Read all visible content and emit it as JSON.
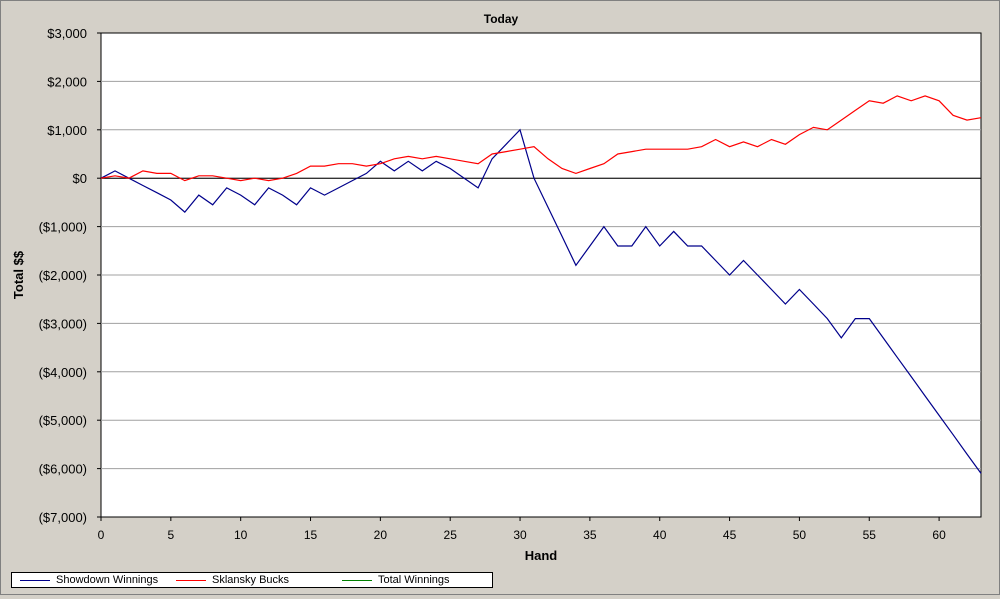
{
  "chart_data": {
    "type": "line",
    "title": "Today",
    "xlabel": "Hand",
    "ylabel": "Total $$",
    "xlim": [
      0,
      63
    ],
    "ylim": [
      -7000,
      3000
    ],
    "x_ticks": [
      0,
      5,
      10,
      15,
      20,
      25,
      30,
      35,
      40,
      45,
      50,
      55,
      60
    ],
    "x_tick_labels": [
      "0",
      "5",
      "10",
      "15",
      "20",
      "25",
      "30",
      "35",
      "40",
      "45",
      "50",
      "55",
      "60"
    ],
    "y_ticks": [
      3000,
      2000,
      1000,
      0,
      -1000,
      -2000,
      -3000,
      -4000,
      -5000,
      -6000,
      -7000
    ],
    "y_tick_labels": [
      "$3,000",
      "$2,000",
      "$1,000",
      "$0",
      "($1,000)",
      "($2,000)",
      "($3,000)",
      "($4,000)",
      "($5,000)",
      "($6,000)",
      "($7,000)"
    ],
    "grid": true,
    "legend_position": "bottom-left",
    "series": [
      {
        "name": "Showdown Winnings",
        "color": "#00008b",
        "x": [
          0,
          1,
          2,
          3,
          4,
          5,
          6,
          7,
          8,
          9,
          10,
          11,
          12,
          13,
          14,
          15,
          16,
          17,
          18,
          19,
          20,
          21,
          22,
          23,
          24,
          25,
          26,
          27,
          28,
          29,
          30,
          31,
          32,
          33,
          34,
          35,
          36,
          37,
          38,
          39,
          40,
          41,
          42,
          43,
          44,
          45,
          46,
          47,
          48,
          49,
          50,
          51,
          52,
          53,
          54,
          55,
          56,
          57,
          58,
          59,
          60,
          61,
          62,
          63
        ],
        "values": [
          0,
          150,
          0,
          -150,
          -300,
          -450,
          -700,
          -350,
          -550,
          -200,
          -350,
          -550,
          -200,
          -350,
          -550,
          -200,
          -350,
          -200,
          -50,
          100,
          350,
          150,
          350,
          150,
          350,
          200,
          0,
          -200,
          400,
          700,
          1000,
          0,
          -600,
          -1200,
          -1800,
          -1400,
          -1000,
          -1400,
          -1400,
          -1000,
          -1400,
          -1100,
          -1400,
          -1400,
          -1700,
          -2000,
          -1700,
          -2000,
          -2300,
          -2600,
          -2300,
          -2600,
          -2900,
          -3300,
          -2900,
          -2900,
          -3300,
          -3700,
          -4100,
          -4500,
          -4900,
          -5300,
          -5700,
          -6100
        ]
      },
      {
        "name": "Sklansky Bucks",
        "color": "#ff0000",
        "x": [
          0,
          1,
          2,
          3,
          4,
          5,
          6,
          7,
          8,
          9,
          10,
          11,
          12,
          13,
          14,
          15,
          16,
          17,
          18,
          19,
          20,
          21,
          22,
          23,
          24,
          25,
          26,
          27,
          28,
          29,
          30,
          31,
          32,
          33,
          34,
          35,
          36,
          37,
          38,
          39,
          40,
          41,
          42,
          43,
          44,
          45,
          46,
          47,
          48,
          49,
          50,
          51,
          52,
          53,
          54,
          55,
          56,
          57,
          58,
          59,
          60,
          61,
          62,
          63
        ],
        "values": [
          0,
          50,
          0,
          150,
          100,
          100,
          -50,
          50,
          50,
          0,
          -50,
          0,
          -50,
          0,
          100,
          250,
          250,
          300,
          300,
          250,
          300,
          400,
          450,
          400,
          450,
          400,
          350,
          300,
          500,
          550,
          600,
          650,
          400,
          200,
          100,
          200,
          300,
          500,
          550,
          600,
          600,
          600,
          600,
          650,
          800,
          650,
          750,
          650,
          800,
          700,
          900,
          1050,
          1000,
          1200,
          1400,
          1600,
          1550,
          1700,
          1600,
          1700,
          1600,
          1300,
          1200,
          1250
        ]
      },
      {
        "name": "Total Winnings",
        "color": "#008000",
        "x": [],
        "values": []
      }
    ]
  }
}
